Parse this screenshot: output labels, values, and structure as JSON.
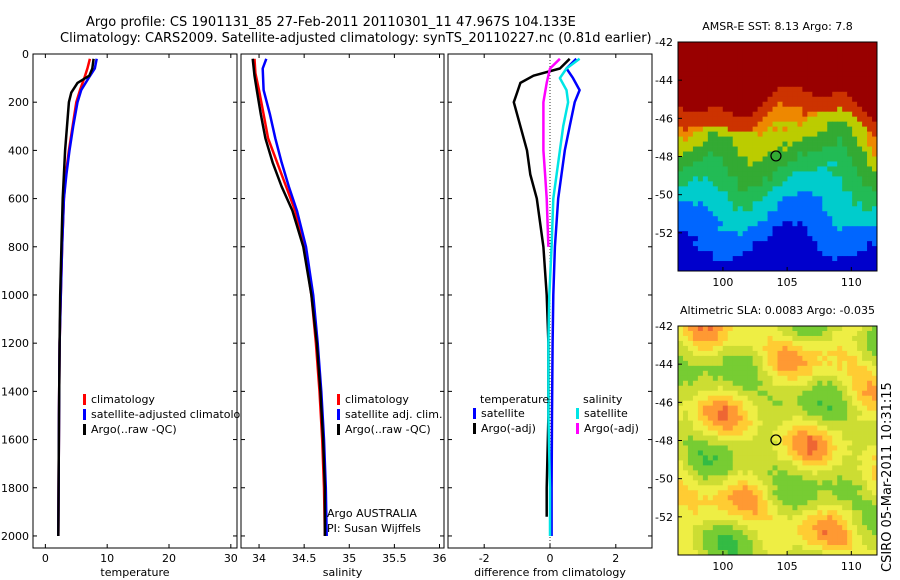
{
  "figure": {
    "title_line1": "Argo profile: CS 1901131_85 27-Feb-2011 20110301_11 47.967S 104.133E",
    "title_line2": "Climatology: CARS2009. Satellite-adjusted climatology: synTS_20110227.nc (0.81d earlier)",
    "side_label": "CSIRO 05-Mar-2011 10:31:15",
    "colors": {
      "red": "#ff0000",
      "blue": "#0000ff",
      "black": "#000000",
      "cyan": "#00e5e5",
      "magenta": "#ff00ff",
      "grid": "#000000"
    }
  },
  "chart_data": [
    {
      "id": "temperature",
      "type": "line",
      "xlabel": "temperature",
      "xlim": [
        -2,
        31
      ],
      "ylim": [
        0,
        2050
      ],
      "xticks": [
        0,
        10,
        20,
        30
      ],
      "xtick_labels": [
        "0",
        "10",
        "20",
        "30"
      ],
      "yticks": [
        0,
        200,
        400,
        600,
        800,
        1000,
        1200,
        1400,
        1600,
        1800,
        2000
      ],
      "ytick_labels": [
        "0",
        "200",
        "400",
        "600",
        "800",
        "1000",
        "1200",
        "1400",
        "1600",
        "1800",
        "2000"
      ],
      "legend": [
        "climatology",
        "satellite-adjusted climatolo",
        "Argo(..raw -QC)"
      ],
      "legend_colors": [
        "#ff0000",
        "#0000ff",
        "#000000"
      ],
      "series": [
        {
          "name": "climatology",
          "color": "#ff0000",
          "points": [
            [
              7.2,
              20
            ],
            [
              6.8,
              60
            ],
            [
              6.3,
              100
            ],
            [
              5.6,
              150
            ],
            [
              5.0,
              200
            ],
            [
              4.4,
              300
            ],
            [
              3.8,
              400
            ],
            [
              3.3,
              500
            ],
            [
              3.0,
              600
            ],
            [
              2.7,
              800
            ],
            [
              2.5,
              1000
            ],
            [
              2.3,
              1200
            ],
            [
              2.2,
              1500
            ],
            [
              2.1,
              2000
            ]
          ]
        },
        {
          "name": "satellite-adjusted climatology",
          "color": "#0000ff",
          "points": [
            [
              8.3,
              20
            ],
            [
              8.0,
              60
            ],
            [
              7.0,
              100
            ],
            [
              5.8,
              150
            ],
            [
              5.2,
              200
            ],
            [
              4.5,
              300
            ],
            [
              3.9,
              400
            ],
            [
              3.4,
              500
            ],
            [
              3.0,
              600
            ],
            [
              2.7,
              800
            ],
            [
              2.5,
              1000
            ],
            [
              2.3,
              1200
            ],
            [
              2.2,
              1500
            ],
            [
              2.1,
              2000
            ]
          ]
        },
        {
          "name": "Argo(..raw -QC)",
          "color": "#000000",
          "points": [
            [
              7.8,
              20
            ],
            [
              7.6,
              60
            ],
            [
              7.1,
              90
            ],
            [
              5.2,
              120
            ],
            [
              4.2,
              160
            ],
            [
              3.8,
              200
            ],
            [
              3.5,
              300
            ],
            [
              3.2,
              400
            ],
            [
              3.0,
              500
            ],
            [
              2.8,
              600
            ],
            [
              2.6,
              800
            ],
            [
              2.4,
              1000
            ],
            [
              2.3,
              1200
            ],
            [
              2.2,
              1500
            ],
            [
              2.1,
              2000
            ]
          ]
        }
      ]
    },
    {
      "id": "salinity",
      "type": "line",
      "xlabel": "salinity",
      "xlim": [
        33.8,
        36.05
      ],
      "ylim": [
        0,
        2050
      ],
      "xticks": [
        34,
        34.5,
        35,
        35.5,
        36
      ],
      "xtick_labels": [
        "34",
        "34.5",
        "35",
        "35.5",
        "36"
      ],
      "yticks": [
        0,
        200,
        400,
        600,
        800,
        1000,
        1200,
        1400,
        1600,
        1800,
        2000
      ],
      "ytick_labels": [],
      "legend": [
        "climatology",
        "satellite adj. clim.",
        "Argo(..raw -QC)"
      ],
      "legend_colors": [
        "#ff0000",
        "#0000ff",
        "#000000"
      ],
      "annotation": [
        "Argo AUSTRALIA",
        "PI: Susan Wijffels"
      ],
      "series": [
        {
          "name": "climatology",
          "color": "#ff0000",
          "points": [
            [
              33.95,
              20
            ],
            [
              33.96,
              80
            ],
            [
              34.0,
              150
            ],
            [
              34.05,
              250
            ],
            [
              34.1,
              350
            ],
            [
              34.2,
              450
            ],
            [
              34.3,
              550
            ],
            [
              34.4,
              650
            ],
            [
              34.5,
              800
            ],
            [
              34.58,
              1000
            ],
            [
              34.63,
              1200
            ],
            [
              34.67,
              1400
            ],
            [
              34.7,
              1600
            ],
            [
              34.72,
              1800
            ],
            [
              34.73,
              2000
            ]
          ]
        },
        {
          "name": "satellite adj. clim.",
          "color": "#0000ff",
          "points": [
            [
              34.08,
              20
            ],
            [
              34.04,
              60
            ],
            [
              34.05,
              150
            ],
            [
              34.12,
              250
            ],
            [
              34.18,
              350
            ],
            [
              34.25,
              450
            ],
            [
              34.33,
              550
            ],
            [
              34.42,
              650
            ],
            [
              34.52,
              800
            ],
            [
              34.6,
              1000
            ],
            [
              34.65,
              1200
            ],
            [
              34.69,
              1400
            ],
            [
              34.72,
              1600
            ],
            [
              34.74,
              1800
            ],
            [
              34.75,
              2000
            ]
          ]
        },
        {
          "name": "Argo(..raw -QC)",
          "color": "#000000",
          "points": [
            [
              33.93,
              20
            ],
            [
              33.95,
              90
            ],
            [
              33.98,
              160
            ],
            [
              34.02,
              250
            ],
            [
              34.07,
              350
            ],
            [
              34.15,
              450
            ],
            [
              34.25,
              550
            ],
            [
              34.37,
              650
            ],
            [
              34.49,
              800
            ],
            [
              34.58,
              1000
            ],
            [
              34.64,
              1200
            ],
            [
              34.68,
              1400
            ],
            [
              34.71,
              1600
            ],
            [
              34.73,
              1800
            ],
            [
              34.73,
              2000
            ]
          ]
        }
      ]
    },
    {
      "id": "difference",
      "type": "line",
      "xlabel": "difference from climatology",
      "xlim": [
        -3.1,
        3.1
      ],
      "ylim": [
        0,
        2050
      ],
      "xticks": [
        -2,
        0,
        2
      ],
      "xtick_labels": [
        "-2",
        "0",
        "2"
      ],
      "yticks": [
        0,
        200,
        400,
        600,
        800,
        1000,
        1200,
        1400,
        1600,
        1800,
        2000
      ],
      "ytick_labels": [],
      "zero_line": 0,
      "legend_left_title": "temperature",
      "legend_left": [
        "satellite",
        "Argo(-adj)"
      ],
      "legend_left_colors": [
        "#0000ff",
        "#000000"
      ],
      "legend_right_title": "salinity",
      "legend_right": [
        "satellite",
        "Argo(-adj)"
      ],
      "legend_right_colors": [
        "#00e5e5",
        "#ff00ff"
      ],
      "series": [
        {
          "name": "temperature satellite",
          "color": "#0000ff",
          "points": [
            [
              0.8,
              20
            ],
            [
              0.5,
              60
            ],
            [
              0.7,
              100
            ],
            [
              0.9,
              150
            ],
            [
              0.75,
              200
            ],
            [
              0.6,
              300
            ],
            [
              0.45,
              400
            ],
            [
              0.35,
              500
            ],
            [
              0.25,
              600
            ],
            [
              0.15,
              800
            ],
            [
              0.1,
              1000
            ],
            [
              0.08,
              1200
            ],
            [
              0.06,
              1500
            ],
            [
              0.05,
              1800
            ],
            [
              0.05,
              2000
            ]
          ]
        },
        {
          "name": "temperature Argo(-adj)",
          "color": "#000000",
          "points": [
            [
              0.6,
              20
            ],
            [
              0.3,
              60
            ],
            [
              -0.5,
              90
            ],
            [
              -0.9,
              120
            ],
            [
              -1.0,
              160
            ],
            [
              -1.1,
              200
            ],
            [
              -0.9,
              300
            ],
            [
              -0.7,
              400
            ],
            [
              -0.6,
              500
            ],
            [
              -0.4,
              600
            ],
            [
              -0.2,
              800
            ],
            [
              -0.1,
              1000
            ],
            [
              -0.05,
              1200
            ],
            [
              -0.05,
              1500
            ],
            [
              -0.1,
              1800
            ],
            [
              -0.1,
              1920
            ]
          ]
        },
        {
          "name": "salinity satellite",
          "color": "#00e5e5",
          "points": [
            [
              0.9,
              20
            ],
            [
              0.5,
              60
            ],
            [
              0.3,
              100
            ],
            [
              0.5,
              150
            ],
            [
              0.55,
              200
            ],
            [
              0.4,
              300
            ],
            [
              0.3,
              400
            ],
            [
              0.2,
              500
            ],
            [
              0.1,
              600
            ],
            [
              0.05,
              800
            ],
            [
              -0.02,
              1000
            ],
            [
              -0.05,
              1200
            ],
            [
              -0.05,
              1500
            ],
            [
              0.0,
              1800
            ],
            [
              0.0,
              2000
            ]
          ]
        },
        {
          "name": "salinity Argo(-adj)",
          "color": "#ff00ff",
          "points": [
            [
              0.3,
              20
            ],
            [
              0.0,
              60
            ],
            [
              -0.1,
              120
            ],
            [
              -0.2,
              200
            ],
            [
              -0.2,
              300
            ],
            [
              -0.2,
              400
            ],
            [
              -0.15,
              500
            ],
            [
              -0.1,
              600
            ],
            [
              -0.05,
              800
            ]
          ]
        }
      ]
    },
    {
      "id": "sst_map",
      "type": "heatmap",
      "title": "AMSR-E SST: 8.13 Argo: 7.8",
      "xlim": [
        96.5,
        112
      ],
      "ylim": [
        -54,
        -42
      ],
      "xticks": [
        100,
        105,
        110
      ],
      "xtick_labels": [
        "100",
        "105",
        "110"
      ],
      "yticks": [
        -42,
        -44,
        -46,
        -48,
        -50,
        -52
      ],
      "ytick_labels": [
        "-42",
        "-44",
        "-46",
        "-48",
        "-50",
        "-52"
      ],
      "marker": [
        104.13,
        -47.97
      ]
    },
    {
      "id": "sla_map",
      "type": "heatmap",
      "title": "Altimetric SLA: 0.0083 Argo: -0.035",
      "xlim": [
        96.5,
        112
      ],
      "ylim": [
        -54,
        -42
      ],
      "xticks": [
        100,
        105,
        110
      ],
      "xtick_labels": [
        "100",
        "105",
        "110"
      ],
      "yticks": [
        -42,
        -44,
        -46,
        -48,
        -50,
        -52
      ],
      "ytick_labels": [
        "-42",
        "-44",
        "-46",
        "-48",
        "-50",
        "-52"
      ],
      "marker": [
        104.13,
        -47.97
      ]
    }
  ]
}
